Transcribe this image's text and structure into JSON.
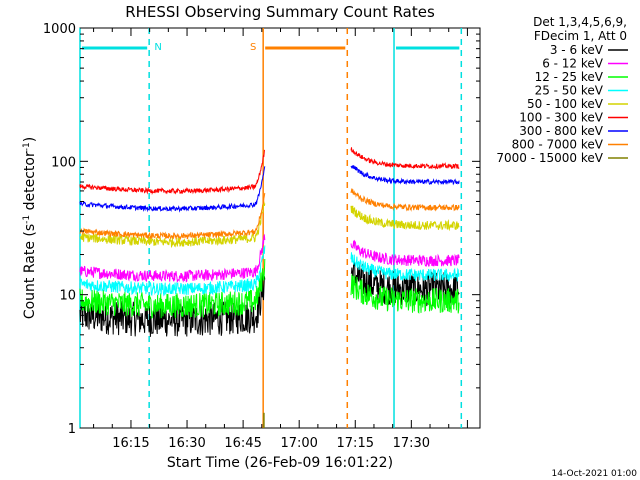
{
  "chart_data": {
    "type": "line",
    "title": "RHESSI Observing Summary Count Rates",
    "xlabel": "Start Time (26-Feb-09 16:01:22)",
    "ylabel_parts": [
      "Count Rate (s",
      "-1",
      " detector",
      "-1",
      ")"
    ],
    "yscale": "log",
    "ylim": [
      1,
      1000
    ],
    "xlim_minutes": [
      0,
      107
    ],
    "x_ticks": [
      "16:15",
      "16:30",
      "16:45",
      "17:00",
      "17:15",
      "17:30"
    ],
    "y_ticks": [
      "1",
      "10",
      "100",
      "1000"
    ],
    "legend_position": "right",
    "legend_header": [
      "Det 1,3,4,5,6,9,",
      "FDecim 1, Att 0"
    ],
    "series": [
      {
        "name": "3 - 6 keV",
        "color": "#000000",
        "before": 7.0,
        "after": 11,
        "noise": 0.3
      },
      {
        "name": "6 - 12 keV",
        "color": "#ff00ff",
        "before": 15,
        "after": 18,
        "noise": 0.1
      },
      {
        "name": "12 - 25 keV",
        "color": "#00ff00",
        "before": 9,
        "after": 9,
        "noise": 0.22
      },
      {
        "name": "25 - 50 keV",
        "color": "#00ffff",
        "before": 12,
        "after": 14,
        "noise": 0.11
      },
      {
        "name": "50 - 100 keV",
        "color": "#d4d400",
        "before": 27,
        "after": 33,
        "noise": 0.08
      },
      {
        "name": "100 - 300 keV",
        "color": "#ff0000",
        "before": 65,
        "after": 92,
        "noise": 0.04
      },
      {
        "name": "300 - 800 keV",
        "color": "#0000ff",
        "before": 48,
        "after": 70,
        "noise": 0.04
      },
      {
        "name": "800 - 7000 keV",
        "color": "#ff8000",
        "before": 30,
        "after": 45,
        "noise": 0.05
      },
      {
        "name": "7000 - 15000 keV",
        "color": "#808000",
        "before": null,
        "after": null,
        "noise": 0
      }
    ],
    "annotations": [
      {
        "label": "N",
        "color": "#00e0e0",
        "start_min": 0,
        "end_min": 18.5,
        "bar_color": "#00e0e0"
      },
      {
        "label": "",
        "color": "#00e0e0",
        "start_min": 84,
        "end_min": 102,
        "bar_color": "#00e0e0"
      },
      {
        "label": "S",
        "color": "#ff8000",
        "start_min": 49,
        "end_min": 71.5,
        "bar_color": "#ff8000"
      }
    ],
    "gaps": [
      {
        "start_min": 49.5,
        "end_min": 72.5
      }
    ]
  },
  "footer": {
    "timestamp": "14-Oct-2021 01:00"
  }
}
